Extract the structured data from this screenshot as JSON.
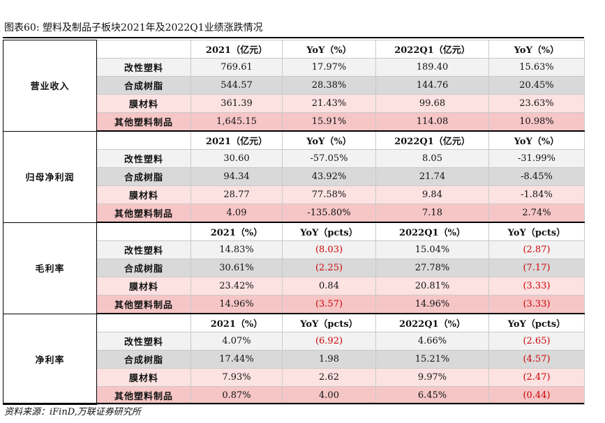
{
  "title": "图表60:  塑料及制品子板块2021年及2022Q1业绩涨跌情况",
  "source": "资料来源：iFinD,万联证券研究所",
  "sections": [
    {
      "group": "营业收入",
      "headers": [
        "2021（亿元）",
        "YoY（%）",
        "2022Q1（亿元）",
        "YoY（%）"
      ],
      "rows": [
        {
          "name": "改性塑料",
          "values": [
            "769.61",
            "17.97%",
            "189.40",
            "15.63%"
          ],
          "negative": [
            false,
            false,
            false,
            false
          ]
        },
        {
          "name": "合成树脂",
          "values": [
            "544.57",
            "28.38%",
            "144.76",
            "20.45%"
          ],
          "negative": [
            false,
            false,
            false,
            false
          ]
        },
        {
          "name": "膜材料",
          "values": [
            "361.39",
            "21.43%",
            "99.68",
            "23.63%"
          ],
          "negative": [
            false,
            false,
            false,
            false
          ]
        },
        {
          "name": "其他塑料制品",
          "values": [
            "1,645.15",
            "15.91%",
            "114.08",
            "10.98%"
          ],
          "negative": [
            false,
            false,
            false,
            false
          ]
        }
      ]
    },
    {
      "group": "归母净利润",
      "headers": [
        "2021（亿元）",
        "YoY（%）",
        "2022Q1（亿元）",
        "YoY（%）"
      ],
      "rows": [
        {
          "name": "改性塑料",
          "values": [
            "30.60",
            "-57.05%",
            "8.05",
            "-31.99%"
          ],
          "negative": [
            false,
            false,
            false,
            false
          ]
        },
        {
          "name": "合成树脂",
          "values": [
            "94.34",
            "43.92%",
            "21.74",
            "-8.45%"
          ],
          "negative": [
            false,
            false,
            false,
            false
          ]
        },
        {
          "name": "膜材料",
          "values": [
            "28.77",
            "77.58%",
            "9.84",
            "-1.84%"
          ],
          "negative": [
            false,
            false,
            false,
            false
          ]
        },
        {
          "name": "其他塑料制品",
          "values": [
            "4.09",
            "-135.80%",
            "7.18",
            "2.74%"
          ],
          "negative": [
            false,
            false,
            false,
            false
          ]
        }
      ]
    },
    {
      "group": "毛利率",
      "headers": [
        "2021（%）",
        "YoY（pcts）",
        "2022Q1（%）",
        "YoY（pcts）"
      ],
      "rows": [
        {
          "name": "改性塑料",
          "values": [
            "14.83%",
            "(8.03)",
            "15.04%",
            "(2.87)"
          ],
          "negative": [
            false,
            true,
            false,
            true
          ]
        },
        {
          "name": "合成树脂",
          "values": [
            "30.61%",
            "(2.25)",
            "27.78%",
            "(7.17)"
          ],
          "negative": [
            false,
            true,
            false,
            true
          ]
        },
        {
          "name": "膜材料",
          "values": [
            "23.42%",
            "0.84",
            "20.81%",
            "(3.33)"
          ],
          "negative": [
            false,
            false,
            false,
            true
          ]
        },
        {
          "name": "其他塑料制品",
          "values": [
            "14.96%",
            "(3.57)",
            "14.96%",
            "(3.33)"
          ],
          "negative": [
            false,
            true,
            false,
            true
          ]
        }
      ]
    },
    {
      "group": "净利率",
      "headers": [
        "2021（%）",
        "YoY（pcts）",
        "2022Q1（%）",
        "YoY（pcts）"
      ],
      "rows": [
        {
          "name": "改性塑料",
          "values": [
            "4.07%",
            "(6.92)",
            "4.66%",
            "(2.65)"
          ],
          "negative": [
            false,
            true,
            false,
            true
          ]
        },
        {
          "name": "合成树脂",
          "values": [
            "17.44%",
            "1.98",
            "15.21%",
            "(4.57)"
          ],
          "negative": [
            false,
            false,
            false,
            true
          ]
        },
        {
          "name": "膜材料",
          "values": [
            "7.93%",
            "2.62",
            "9.97%",
            "(2.47)"
          ],
          "negative": [
            false,
            false,
            false,
            true
          ]
        },
        {
          "name": "其他塑料制品",
          "values": [
            "0.87%",
            "4.00",
            "6.45%",
            "(0.44)"
          ],
          "negative": [
            false,
            false,
            false,
            true
          ]
        }
      ]
    }
  ]
}
